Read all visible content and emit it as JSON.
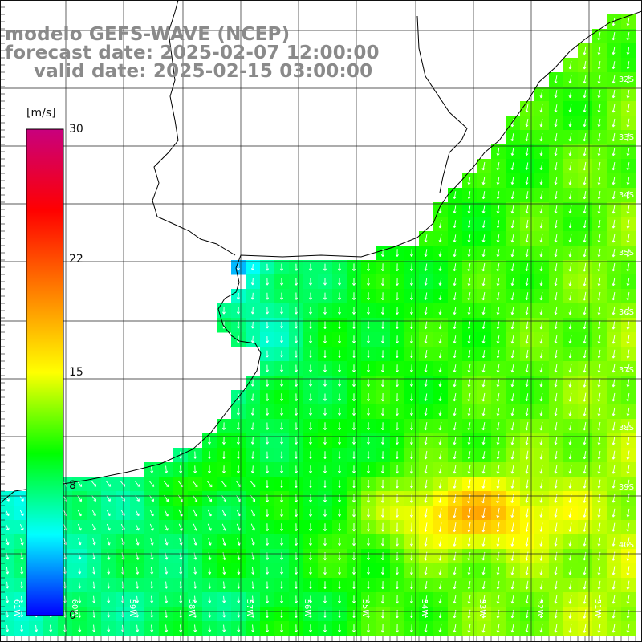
{
  "title": {
    "model": "modelo GEFS-WAVE (NCEP)",
    "forecast": "forecast date: 2025-02-07 12:00:00",
    "valid": "valid date: 2025-02-15 03:00:00"
  },
  "colorbar": {
    "unit": "[m/s]",
    "min": 0,
    "max": 30,
    "ticks": [
      "30",
      "22",
      "15",
      "8",
      "0"
    ],
    "tick_values": [
      30,
      22,
      15,
      8,
      0
    ],
    "stops": [
      "#0000ff",
      "#00ffff",
      "#00ff00",
      "#ffff00",
      "#ff7f00",
      "#ff0000",
      "#c8007e"
    ]
  },
  "grid_labels": {
    "lat": [
      "32S",
      "33S",
      "34S",
      "35S",
      "36S",
      "37S",
      "38S",
      "39S",
      "40S"
    ],
    "lon": [
      "61W",
      "60W",
      "59W",
      "58W",
      "57W",
      "56W",
      "55W",
      "54W",
      "53W",
      "52W",
      "51W"
    ]
  },
  "colors": {
    "land": "#ffffff",
    "grid": "#222222",
    "coast": "#000000",
    "arrows": "#ffffff",
    "title": "#8a8a8a"
  }
}
